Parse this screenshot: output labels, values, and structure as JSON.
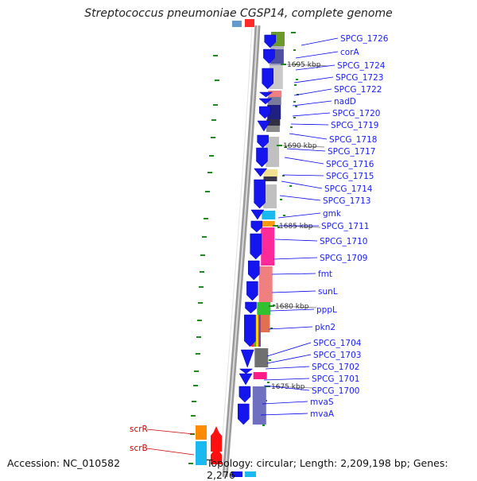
{
  "title": "Streptococcus pneumoniae CGSP14, complete genome",
  "footer": {
    "accession": "Accession: NC_010582",
    "topology": "Topology: circular; Length: 2,209,198 bp; Genes: 2,276"
  },
  "colors": {
    "gene_label": "#1a1aff",
    "leader": "#0000ee",
    "red_label": "#cc0000",
    "forward_gene": "#1515ee",
    "reverse_gene": "#ff1010",
    "backbone": "#888888",
    "tick": "#228822"
  },
  "scale_marks": [
    "1695 kbp",
    "1690 kbp",
    "1685 kbp",
    "1680 kbp",
    "1675 kbp"
  ],
  "gene_labels": [
    "SPCG_1726",
    "corA",
    "SPCG_1724",
    "SPCG_1723",
    "SPCG_1722",
    "nadD",
    "SPCG_1720",
    "SPCG_1719",
    "SPCG_1718",
    "SPCG_1717",
    "SPCG_1716",
    "SPCG_1715",
    "SPCG_1714",
    "SPCG_1713",
    "gmk",
    "SPCG_1711",
    "SPCG_1710",
    "SPCG_1709",
    "fmt",
    "sunL",
    "pppL",
    "pkn2",
    "SPCG_1704",
    "SPCG_1703",
    "SPCG_1702",
    "SPCG_1701",
    "SPCG_1700",
    "mvaS",
    "mvaA"
  ],
  "reverse_labels": [
    "scrR",
    "scrB"
  ]
}
